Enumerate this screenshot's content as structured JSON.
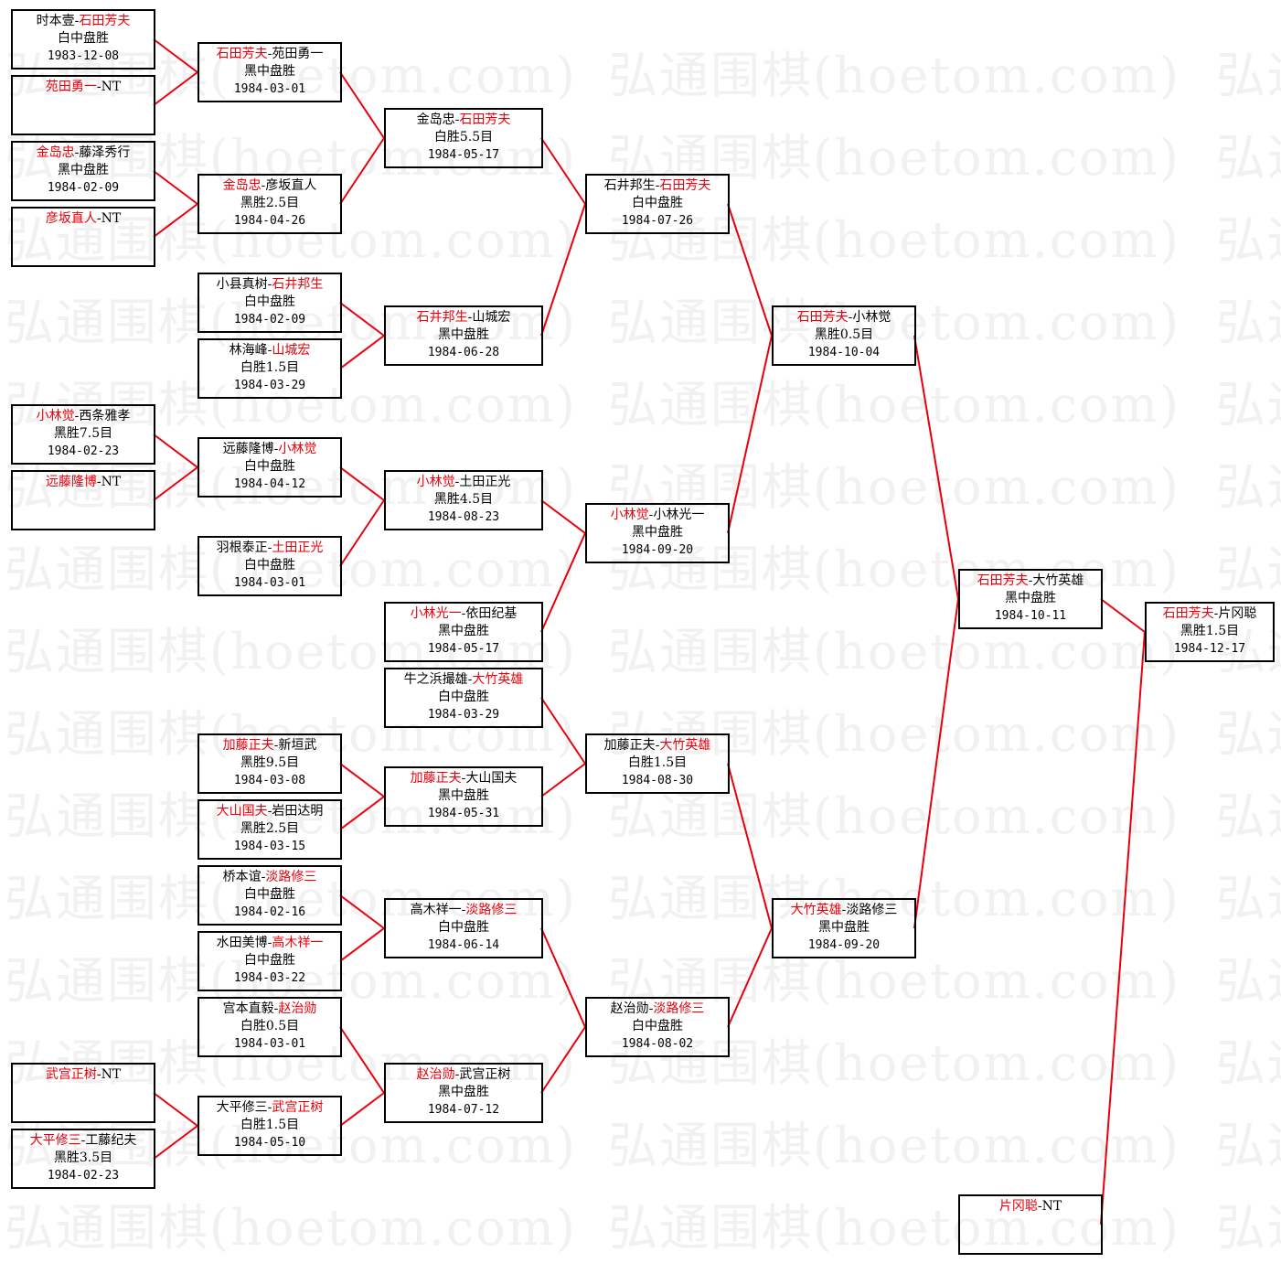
{
  "watermark": "弘通围棋(hoetom.com)",
  "colors": {
    "winner": "#e8000b",
    "line": "#e8000b",
    "border": "#000000",
    "watermark": "#f1f1f1"
  },
  "matches": [
    {
      "a": "时本壹",
      "b": "石田芳夫",
      "winner": "b",
      "result": "白中盘胜",
      "date": "1983-12-08"
    },
    {
      "a": "苑田勇一",
      "b": "NT",
      "winner": "a",
      "result": "",
      "date": ""
    },
    {
      "a": "金岛忠",
      "b": "藤泽秀行",
      "winner": "a",
      "result": "黑中盘胜",
      "date": "1984-02-09"
    },
    {
      "a": "彦坂直人",
      "b": "NT",
      "winner": "a",
      "result": "",
      "date": ""
    },
    {
      "a": "小林觉",
      "b": "西条雅孝",
      "winner": "a",
      "result": "黑胜7.5目",
      "date": "1984-02-23"
    },
    {
      "a": "远藤隆博",
      "b": "NT",
      "winner": "a",
      "result": "",
      "date": ""
    },
    {
      "a": "武宫正树",
      "b": "NT",
      "winner": "a",
      "result": "",
      "date": ""
    },
    {
      "a": "大平修三",
      "b": "工藤纪夫",
      "winner": "a",
      "result": "黑胜3.5目",
      "date": "1984-02-23"
    },
    {
      "a": "石田芳夫",
      "b": "苑田勇一",
      "winner": "a",
      "result": "黑中盘胜",
      "date": "1984-03-01"
    },
    {
      "a": "金岛忠",
      "b": "彦坂直人",
      "winner": "a",
      "result": "黑胜2.5目",
      "date": "1984-04-26"
    },
    {
      "a": "小县真树",
      "b": "石井邦生",
      "winner": "b",
      "result": "白中盘胜",
      "date": "1984-02-09"
    },
    {
      "a": "林海峰",
      "b": "山城宏",
      "winner": "b",
      "result": "白胜1.5目",
      "date": "1984-03-29"
    },
    {
      "a": "远藤隆博",
      "b": "小林觉",
      "winner": "b",
      "result": "白中盘胜",
      "date": "1984-04-12"
    },
    {
      "a": "羽根泰正",
      "b": "土田正光",
      "winner": "b",
      "result": "白中盘胜",
      "date": "1984-03-01"
    },
    {
      "a": "加藤正夫",
      "b": "新垣武",
      "winner": "a",
      "result": "黑胜9.5目",
      "date": "1984-03-08"
    },
    {
      "a": "大山国夫",
      "b": "岩田达明",
      "winner": "a",
      "result": "黑胜2.5目",
      "date": "1984-03-15"
    },
    {
      "a": "桥本谊",
      "b": "淡路修三",
      "winner": "b",
      "result": "白中盘胜",
      "date": "1984-02-16"
    },
    {
      "a": "水田美博",
      "b": "高木祥一",
      "winner": "b",
      "result": "白中盘胜",
      "date": "1984-03-22"
    },
    {
      "a": "宫本直毅",
      "b": "赵治勋",
      "winner": "b",
      "result": "白胜0.5目",
      "date": "1984-03-01"
    },
    {
      "a": "大平修三",
      "b": "武宫正树",
      "winner": "b",
      "result": "白胜1.5目",
      "date": "1984-05-10"
    },
    {
      "a": "金岛忠",
      "b": "石田芳夫",
      "winner": "b",
      "result": "白胜5.5目",
      "date": "1984-05-17"
    },
    {
      "a": "石井邦生",
      "b": "山城宏",
      "winner": "a",
      "result": "黑中盘胜",
      "date": "1984-06-28"
    },
    {
      "a": "小林觉",
      "b": "土田正光",
      "winner": "a",
      "result": "黑胜4.5目",
      "date": "1984-08-23"
    },
    {
      "a": "小林光一",
      "b": "依田纪基",
      "winner": "a",
      "result": "黑中盘胜",
      "date": "1984-05-17"
    },
    {
      "a": "牛之浜撮雄",
      "b": "大竹英雄",
      "winner": "b",
      "result": "白中盘胜",
      "date": "1984-03-29"
    },
    {
      "a": "加藤正夫",
      "b": "大山国夫",
      "winner": "a",
      "result": "黑中盘胜",
      "date": "1984-05-31"
    },
    {
      "a": "高木祥一",
      "b": "淡路修三",
      "winner": "b",
      "result": "白中盘胜",
      "date": "1984-06-14"
    },
    {
      "a": "赵治勋",
      "b": "武宫正树",
      "winner": "a",
      "result": "黑中盘胜",
      "date": "1984-07-12"
    },
    {
      "a": "石井邦生",
      "b": "石田芳夫",
      "winner": "b",
      "result": "白中盘胜",
      "date": "1984-07-26"
    },
    {
      "a": "小林觉",
      "b": "小林光一",
      "winner": "a",
      "result": "黑中盘胜",
      "date": "1984-09-20"
    },
    {
      "a": "加藤正夫",
      "b": "大竹英雄",
      "winner": "b",
      "result": "白胜1.5目",
      "date": "1984-08-30"
    },
    {
      "a": "赵治勋",
      "b": "淡路修三",
      "winner": "b",
      "result": "白中盘胜",
      "date": "1984-08-02"
    },
    {
      "a": "石田芳夫",
      "b": "小林觉",
      "winner": "a",
      "result": "黑胜0.5目",
      "date": "1984-10-04"
    },
    {
      "a": "大竹英雄",
      "b": "淡路修三",
      "winner": "a",
      "result": "黑中盘胜",
      "date": "1984-09-20"
    },
    {
      "a": "石田芳夫",
      "b": "大竹英雄",
      "winner": "a",
      "result": "黑中盘胜",
      "date": "1984-10-11"
    },
    {
      "a": "片冈聪",
      "b": "NT",
      "winner": "a",
      "result": "",
      "date": ""
    },
    {
      "a": "石田芳夫",
      "b": "片冈聪",
      "winner": "a",
      "result": "黑胜1.5目",
      "date": "1984-12-17"
    }
  ]
}
